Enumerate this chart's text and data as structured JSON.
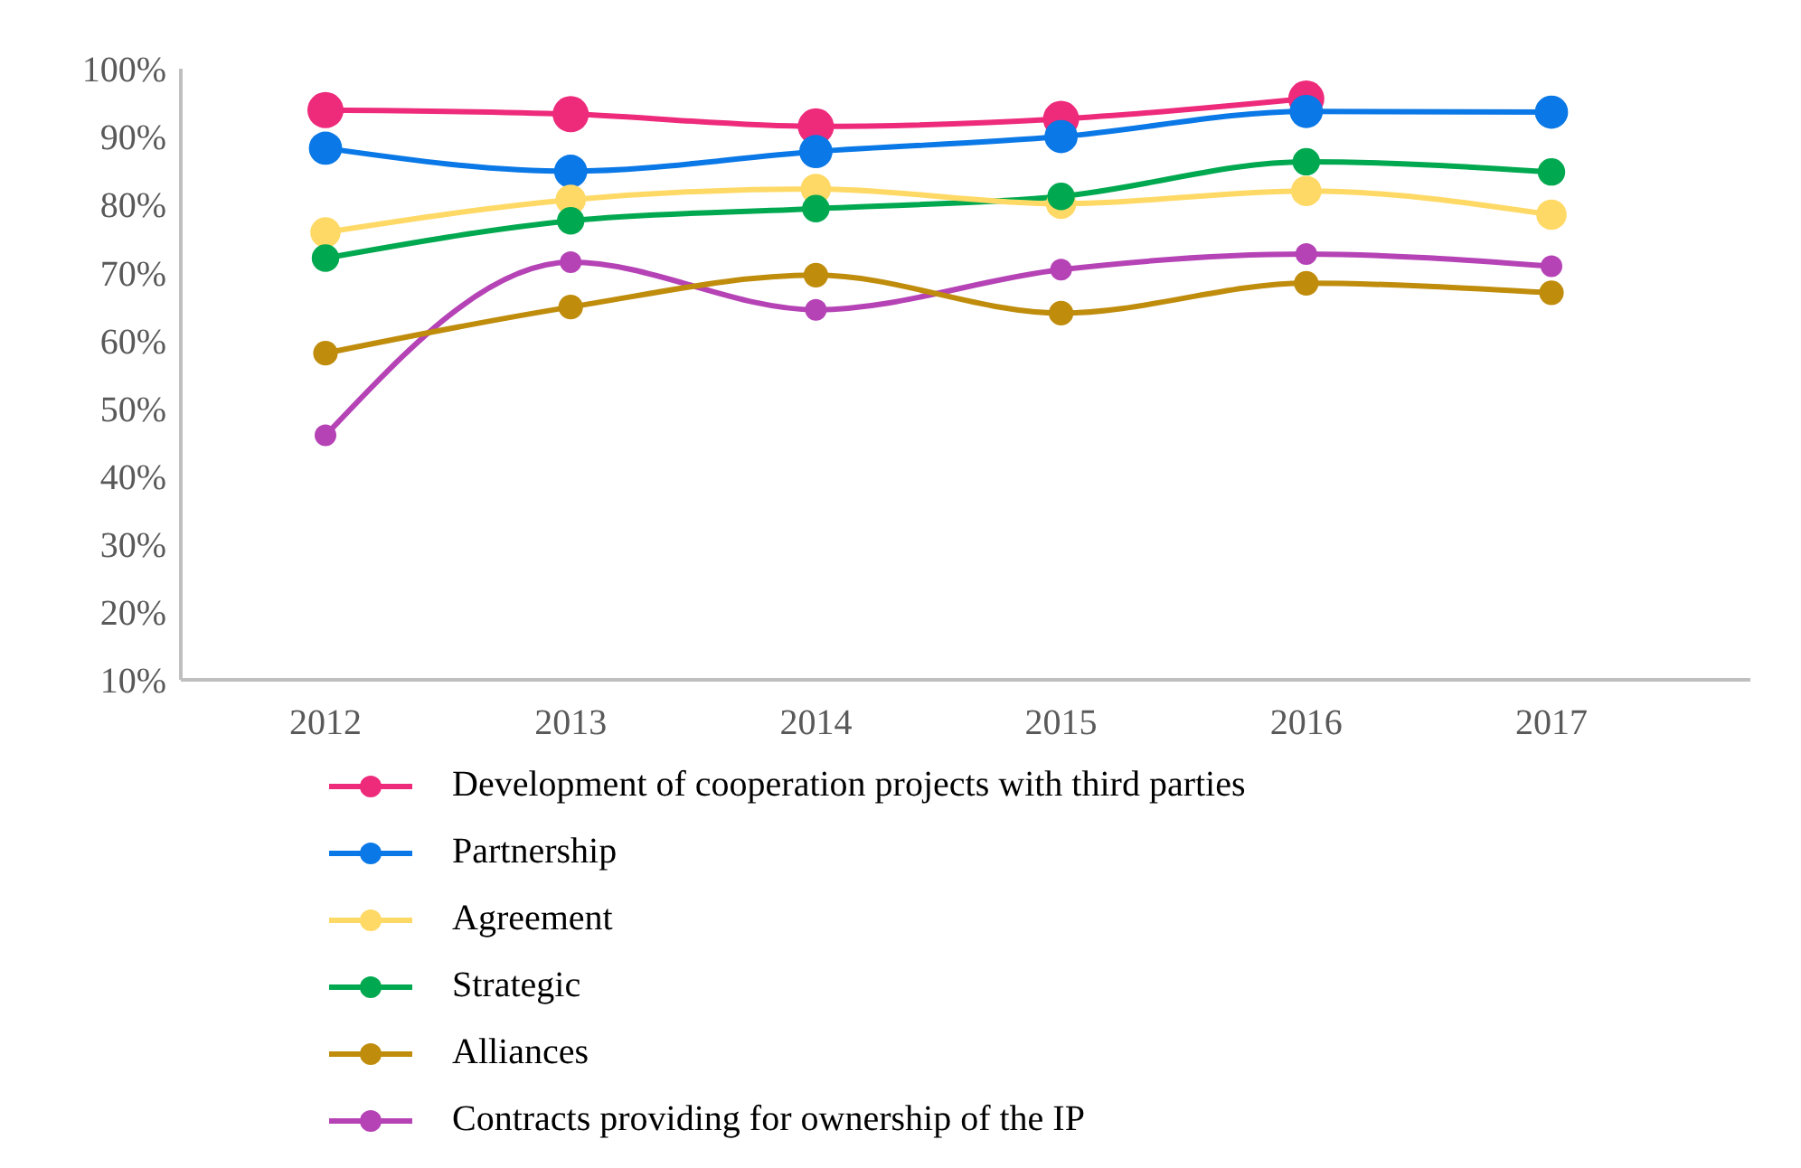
{
  "chart_data": {
    "type": "line",
    "categories": [
      "2012",
      "2013",
      "2014",
      "2015",
      "2016",
      "2017"
    ],
    "series": [
      {
        "name": "Development of cooperation projects with third parties",
        "color": "#ee2a7b",
        "values": [
          93.9,
          93.3,
          91.5,
          92.6,
          95.6,
          null
        ]
      },
      {
        "name": "Partnership",
        "color": "#0a78e6",
        "values": [
          88.3,
          84.9,
          87.8,
          90.0,
          93.7,
          93.6
        ]
      },
      {
        "name": "Agreement",
        "color": "#ffd966",
        "values": [
          75.9,
          80.7,
          82.3,
          80.1,
          82.0,
          78.5
        ]
      },
      {
        "name": "Strategic",
        "color": "#00a850",
        "values": [
          72.1,
          77.6,
          79.4,
          81.2,
          86.3,
          84.8
        ]
      },
      {
        "name": "Alliances",
        "color": "#bf8c0c",
        "values": [
          58.1,
          64.9,
          69.6,
          64.0,
          68.4,
          67.0
        ]
      },
      {
        "name": "Contracts providing for ownership of the IP",
        "color": "#b543b5",
        "values": [
          46.0,
          71.5,
          64.5,
          70.4,
          72.7,
          70.9
        ]
      }
    ],
    "ylim": [
      10,
      100
    ],
    "yticks": [
      {
        "value": 10,
        "label": "10%"
      },
      {
        "value": 20,
        "label": "20%"
      },
      {
        "value": 30,
        "label": "30%"
      },
      {
        "value": 40,
        "label": "40%"
      },
      {
        "value": 50,
        "label": "50%"
      },
      {
        "value": 60,
        "label": "60%"
      },
      {
        "value": 70,
        "label": "70%"
      },
      {
        "value": 80,
        "label": "80%"
      },
      {
        "value": 90,
        "label": "90%"
      },
      {
        "value": 100,
        "label": "100%"
      }
    ],
    "grid": false,
    "legend": "bottom",
    "marker": "circle",
    "line_style": "solid"
  }
}
